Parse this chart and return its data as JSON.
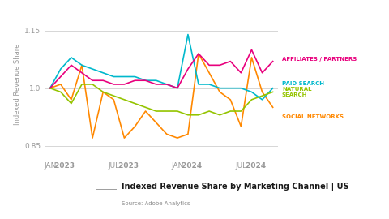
{
  "title": "Indexed Revenue Share by Marketing Channel | US",
  "source": "Source: Adobe Analytics",
  "ylabel": "Indexed Revenue Share",
  "ylim": [
    0.83,
    1.19
  ],
  "yticks": [
    0.85,
    1.0,
    1.15
  ],
  "xtick_labels": [
    "JAN 2023",
    "JUL 2023",
    "JAN 2024",
    "JUL 2024"
  ],
  "xtick_positions": [
    0,
    6,
    12,
    18
  ],
  "colors": {
    "affiliates": "#e8007d",
    "paid_search": "#00b8cc",
    "natural_search": "#94c400",
    "social_networks": "#ff8800"
  },
  "series": {
    "affiliates": [
      1.0,
      1.03,
      1.06,
      1.04,
      1.02,
      1.02,
      1.01,
      1.01,
      1.02,
      1.02,
      1.01,
      1.01,
      1.0,
      1.05,
      1.09,
      1.06,
      1.06,
      1.07,
      1.04,
      1.1,
      1.04,
      1.07
    ],
    "paid_search": [
      1.0,
      1.05,
      1.08,
      1.06,
      1.05,
      1.04,
      1.03,
      1.03,
      1.03,
      1.02,
      1.02,
      1.01,
      1.0,
      1.14,
      1.01,
      1.01,
      1.0,
      1.0,
      1.0,
      0.99,
      0.97,
      1.0
    ],
    "natural_search": [
      1.0,
      0.99,
      0.96,
      1.01,
      1.01,
      0.99,
      0.98,
      0.97,
      0.96,
      0.95,
      0.94,
      0.94,
      0.94,
      0.93,
      0.93,
      0.94,
      0.93,
      0.94,
      0.94,
      0.97,
      0.98,
      0.99
    ],
    "social_networks": [
      1.0,
      1.01,
      0.97,
      1.06,
      0.87,
      0.99,
      0.97,
      0.87,
      0.9,
      0.94,
      0.91,
      0.88,
      0.87,
      0.88,
      1.09,
      1.04,
      0.99,
      0.97,
      0.9,
      1.08,
      0.99,
      0.95
    ]
  },
  "n_points": 22,
  "bg_color": "#ffffff",
  "grid_color": "#d0d0d0",
  "label_fontsize": 6.0,
  "tick_fontsize": 6.5,
  "line_width": 1.2
}
